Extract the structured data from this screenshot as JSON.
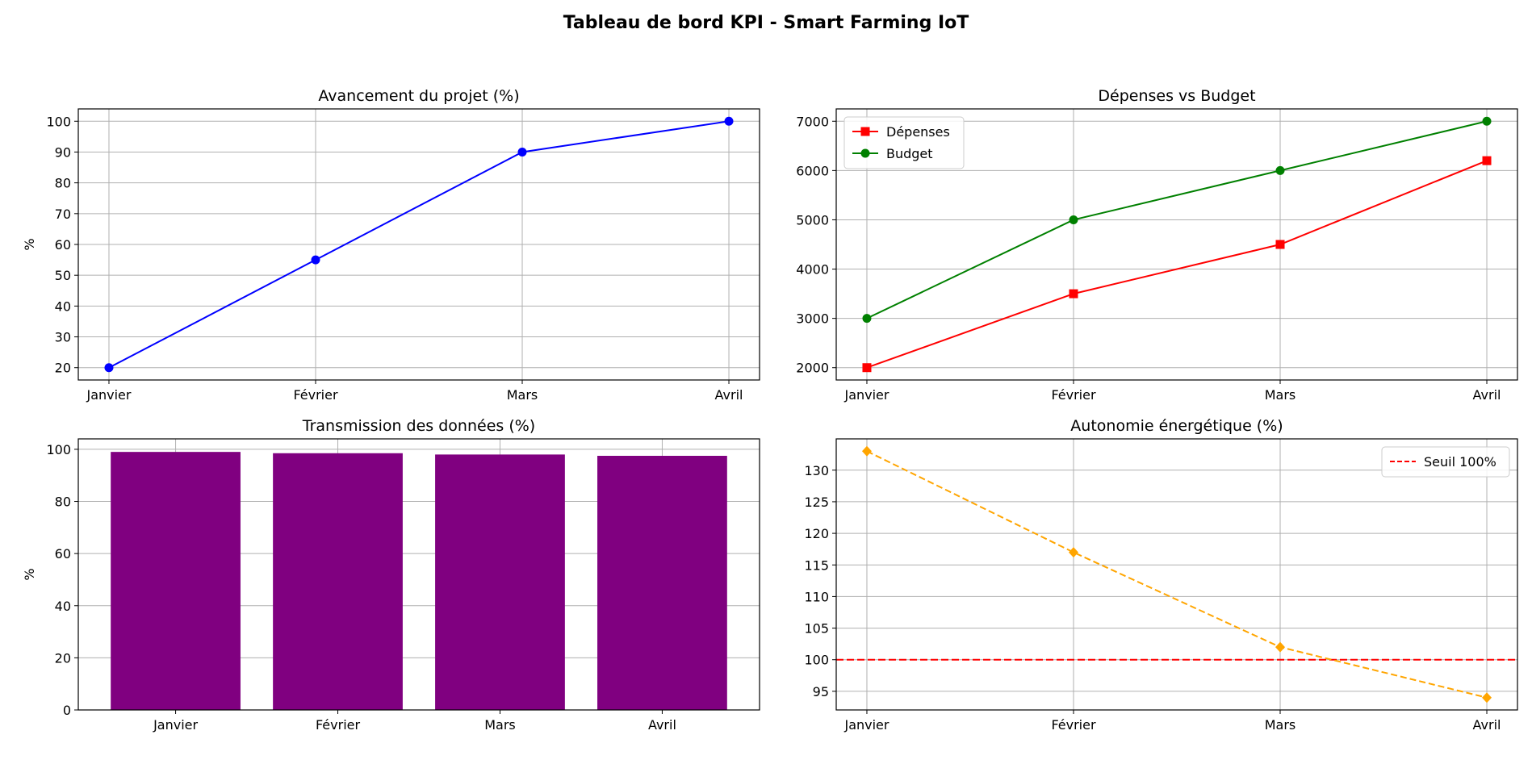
{
  "figure": {
    "title": "Tableau de bord KPI - Smart Farming IoT"
  },
  "chart_data": [
    {
      "type": "line",
      "title": "Avancement du projet (%)",
      "xlabel": "",
      "ylabel": "%",
      "categories": [
        "Janvier",
        "Février",
        "Mars",
        "Avril"
      ],
      "ylim": [
        16.0,
        104.0
      ],
      "yticks": [
        20,
        30,
        40,
        50,
        60,
        70,
        80,
        90,
        100
      ],
      "grid": true,
      "series": [
        {
          "values": [
            20,
            55,
            90,
            100
          ],
          "color": "#0000ff",
          "marker": "circle",
          "linestyle": "solid"
        }
      ]
    },
    {
      "type": "line",
      "title": "Dépenses vs Budget",
      "xlabel": "",
      "ylabel": "",
      "categories": [
        "Janvier",
        "Février",
        "Mars",
        "Avril"
      ],
      "ylim": [
        1750,
        7250
      ],
      "yticks": [
        2000,
        3000,
        4000,
        5000,
        6000,
        7000
      ],
      "grid": true,
      "legend": "top-left",
      "series": [
        {
          "name": "Dépenses",
          "values": [
            2000,
            3500,
            4500,
            6200
          ],
          "color": "#ff0000",
          "marker": "square",
          "linestyle": "solid"
        },
        {
          "name": "Budget",
          "values": [
            3000,
            5000,
            6000,
            7000
          ],
          "color": "#008000",
          "marker": "circle",
          "linestyle": "solid"
        }
      ]
    },
    {
      "type": "bar",
      "title": "Transmission des données (%)",
      "xlabel": "",
      "ylabel": "%",
      "categories": [
        "Janvier",
        "Février",
        "Mars",
        "Avril"
      ],
      "values": [
        99,
        98.5,
        98,
        97.5
      ],
      "ylim": [
        0,
        104
      ],
      "yticks": [
        0,
        20,
        40,
        60,
        80,
        100
      ],
      "grid": true,
      "color": "#800080"
    },
    {
      "type": "line",
      "title": "Autonomie énergétique (%)",
      "xlabel": "",
      "ylabel": "",
      "categories": [
        "Janvier",
        "Février",
        "Mars",
        "Avril"
      ],
      "ylim": [
        92.05,
        134.95
      ],
      "yticks": [
        95,
        100,
        105,
        110,
        115,
        120,
        125,
        130
      ],
      "grid": true,
      "legend": "top-right",
      "series": [
        {
          "values": [
            133,
            117,
            102,
            94
          ],
          "color": "#ffa500",
          "marker": "diamond",
          "linestyle": "dashed"
        }
      ],
      "hlines": [
        {
          "name": "Seuil 100%",
          "y": 100,
          "color": "#ff0000",
          "linestyle": "dashed"
        }
      ]
    }
  ]
}
